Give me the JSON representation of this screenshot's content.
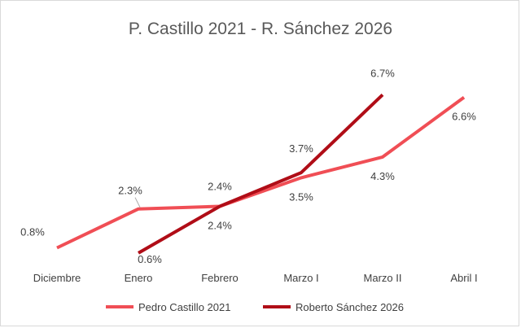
{
  "chart_data": {
    "type": "line",
    "title": "P. Castillo 2021 - R. Sánchez 2026",
    "categories": [
      "Diciembre",
      "Enero",
      "Febrero",
      "Marzo I",
      "Marzo II",
      "Abril I"
    ],
    "ylim": [
      0,
      8
    ],
    "grid": false,
    "legend_position": "bottom",
    "series": [
      {
        "name": "Pedro Castillo 2021",
        "color": "#f04e55",
        "values": [
          0.8,
          2.3,
          2.4,
          3.5,
          4.3,
          6.6
        ],
        "labels": [
          "0.8%",
          "2.3%",
          "2.4%",
          "3.5%",
          "4.3%",
          "6.6%"
        ]
      },
      {
        "name": "Roberto Sánchez 2026",
        "color": "#b00d17",
        "values": [
          null,
          0.6,
          2.4,
          3.7,
          6.7,
          null
        ],
        "labels": [
          "",
          "0.6%",
          "2.4%",
          "3.7%",
          "6.7%",
          ""
        ]
      }
    ]
  }
}
